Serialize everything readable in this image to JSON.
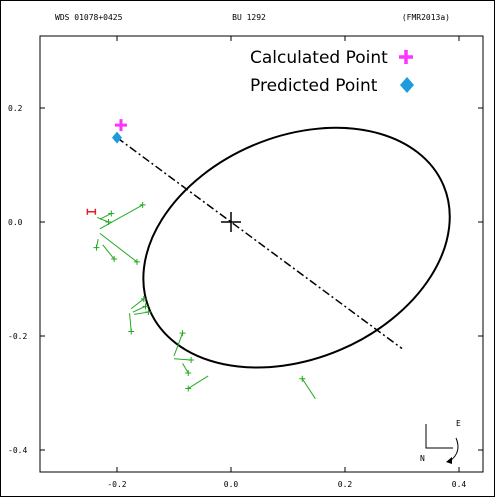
{
  "chart_data": {
    "type": "scatter",
    "header": {
      "left": "WDS 01078+0425",
      "center": "BU 1292",
      "right": "(FMR2013a)"
    },
    "xticks": [
      -0.2,
      0.0,
      0.2,
      0.4
    ],
    "yticks": [
      0.2,
      0.0,
      -0.2,
      -0.4
    ],
    "xtick_labels": [
      "-0.2",
      "0.0",
      "0.2",
      "0.4"
    ],
    "ytick_labels": [
      "0.2",
      "0.0",
      "-0.2",
      "-0.4"
    ],
    "xlim": [
      -0.4,
      0.45
    ],
    "ylim": [
      -0.48,
      0.38
    ],
    "legend": {
      "placement": "top-right",
      "entries": [
        {
          "label": "Calculated Point",
          "marker": "cross",
          "color": "#ff33ff"
        },
        {
          "label": "Predicted Point",
          "marker": "diamond",
          "color": "#1e9bdc"
        }
      ]
    },
    "orbit": {
      "center": [
        0.115,
        -0.045
      ],
      "semi_major": 0.28,
      "semi_minor": 0.195,
      "angle_deg": 67
    },
    "primary": [
      0.0,
      0.0
    ],
    "line_of_apsides": [
      [
        -0.2,
        0.148
      ],
      [
        0.3,
        -0.222
      ]
    ],
    "calculated_point": [
      -0.193,
      0.17
    ],
    "predicted_point": [
      -0.2,
      0.148
    ],
    "measured_red": {
      "x": -0.245,
      "y": 0.018
    },
    "observations": [
      {
        "x": -0.155,
        "y": 0.03,
        "ox": -0.23,
        "oy": -0.012
      },
      {
        "x": -0.21,
        "y": 0.015,
        "ox": -0.23,
        "oy": 0.005
      },
      {
        "x": -0.165,
        "y": -0.07,
        "ox": -0.23,
        "oy": -0.02
      },
      {
        "x": -0.236,
        "y": -0.045,
        "ox": -0.233,
        "oy": -0.03
      },
      {
        "x": -0.205,
        "y": -0.065,
        "ox": -0.225,
        "oy": -0.04
      },
      {
        "x": -0.215,
        "y": 0.0,
        "ox": -0.235,
        "oy": 0.008
      },
      {
        "x": -0.153,
        "y": -0.135,
        "ox": -0.175,
        "oy": -0.152
      },
      {
        "x": -0.15,
        "y": -0.148,
        "ox": -0.172,
        "oy": -0.158
      },
      {
        "x": -0.145,
        "y": -0.158,
        "ox": -0.17,
        "oy": -0.162
      },
      {
        "x": -0.175,
        "y": -0.192,
        "ox": -0.178,
        "oy": -0.16
      },
      {
        "x": -0.085,
        "y": -0.195,
        "ox": -0.1,
        "oy": -0.235
      },
      {
        "x": -0.07,
        "y": -0.242,
        "ox": -0.1,
        "oy": -0.24
      },
      {
        "x": -0.075,
        "y": -0.265,
        "ox": -0.085,
        "oy": -0.248
      },
      {
        "x": -0.075,
        "y": -0.292,
        "ox": -0.04,
        "oy": -0.27
      },
      {
        "x": 0.125,
        "y": -0.275,
        "ox": 0.148,
        "oy": -0.31
      }
    ],
    "compass": {
      "east_label": "E",
      "north_label": "N"
    }
  }
}
